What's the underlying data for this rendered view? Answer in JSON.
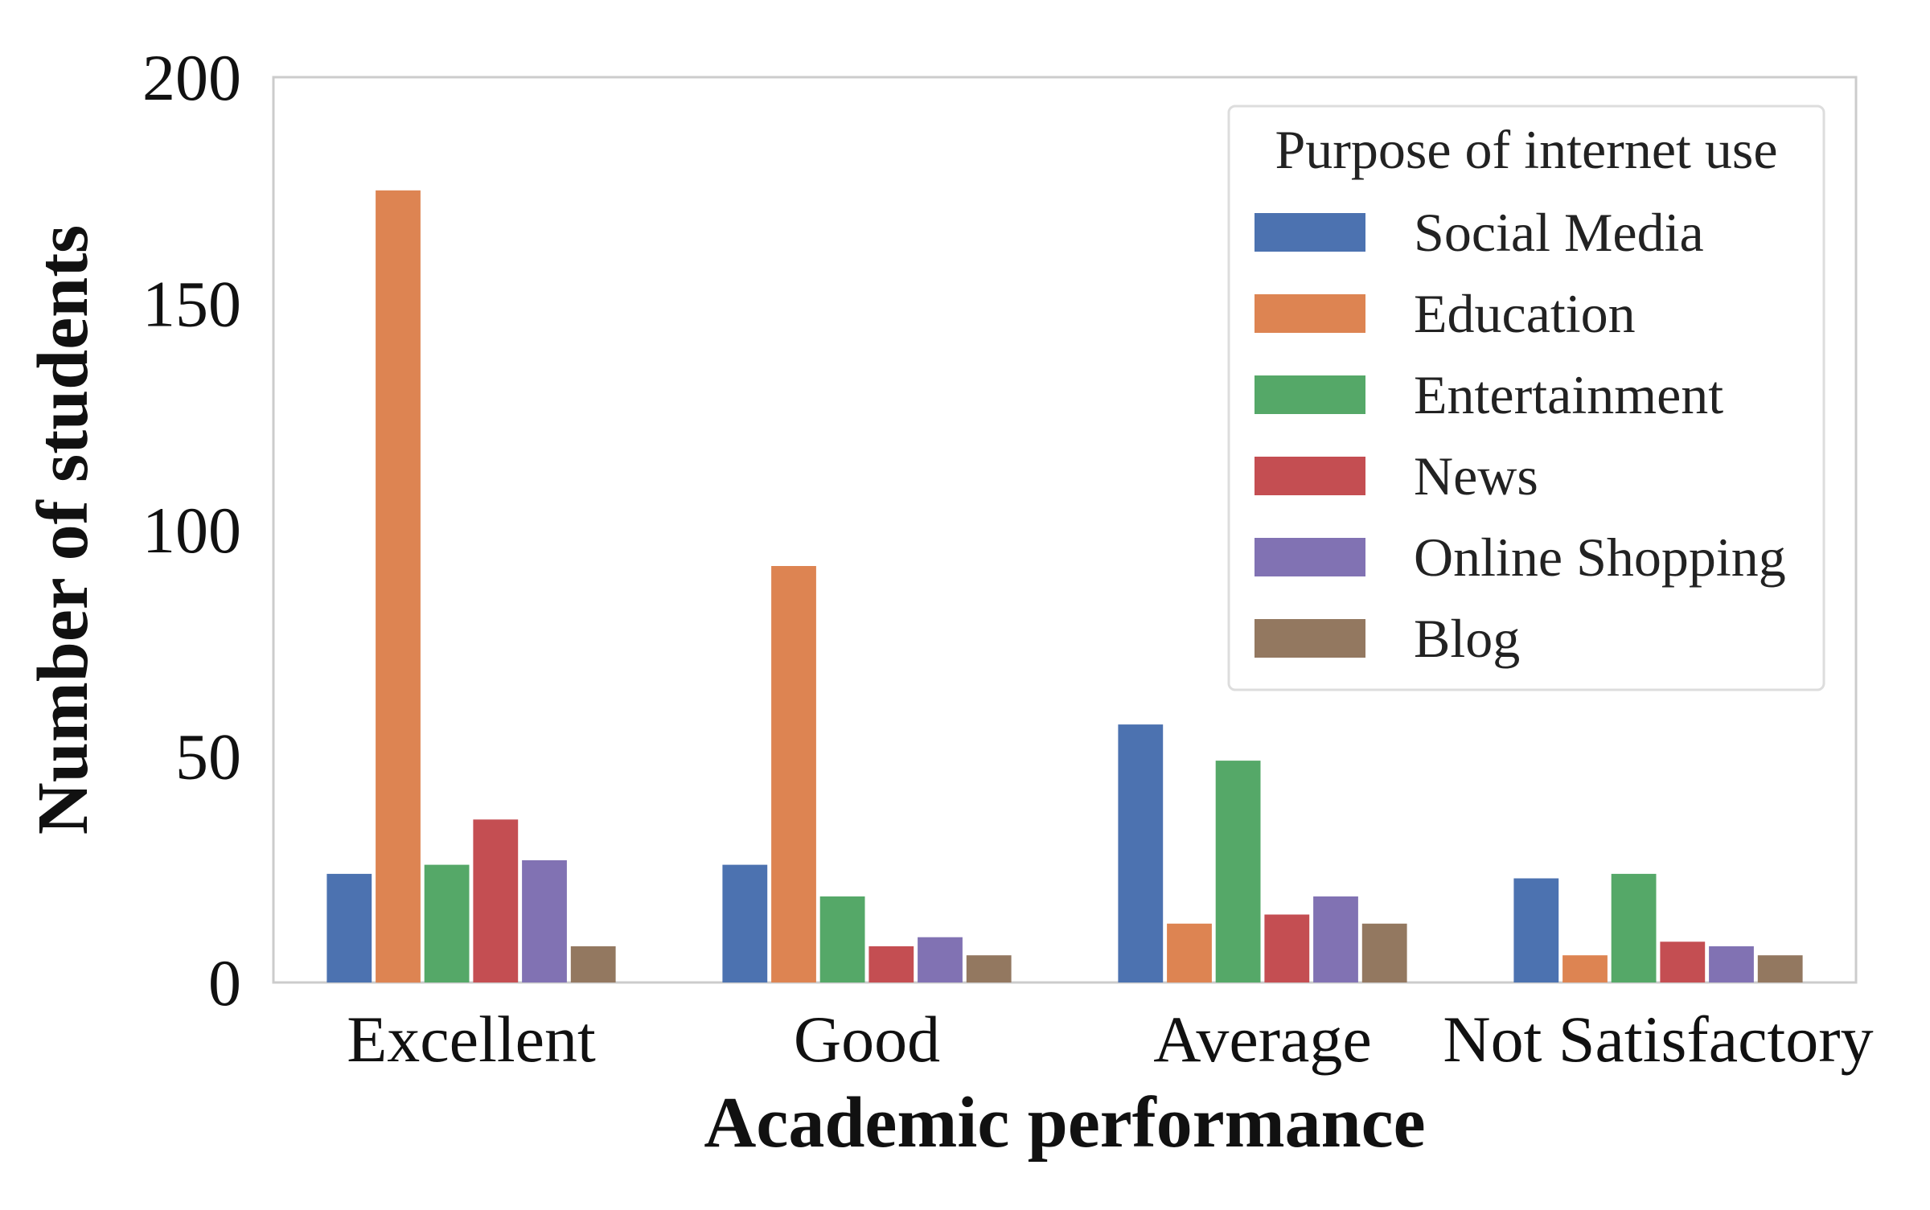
{
  "chart_data": {
    "type": "bar",
    "title": "",
    "xlabel": "Academic performance",
    "ylabel": "Number of students",
    "categories": [
      "Excellent",
      "Good",
      "Average",
      "Not Satisfactory"
    ],
    "ylim": [
      0,
      200
    ],
    "yticks": [
      0,
      50,
      100,
      150,
      200
    ],
    "grid": false,
    "legend": {
      "title": "Purpose of internet use",
      "placement": "top-right"
    },
    "series": [
      {
        "name": "Social Media",
        "color": "#4C72B0",
        "values": [
          24,
          26,
          57,
          23
        ]
      },
      {
        "name": "Education",
        "color": "#DD8452",
        "values": [
          175,
          92,
          13,
          6
        ]
      },
      {
        "name": "Entertainment",
        "color": "#55A868",
        "values": [
          26,
          19,
          49,
          24
        ]
      },
      {
        "name": "News",
        "color": "#C44E52",
        "values": [
          36,
          8,
          15,
          9
        ]
      },
      {
        "name": "Online Shopping",
        "color": "#8172B3",
        "values": [
          27,
          10,
          19,
          8
        ]
      },
      {
        "name": "Blog",
        "color": "#937860",
        "values": [
          8,
          6,
          13,
          6
        ]
      }
    ]
  }
}
